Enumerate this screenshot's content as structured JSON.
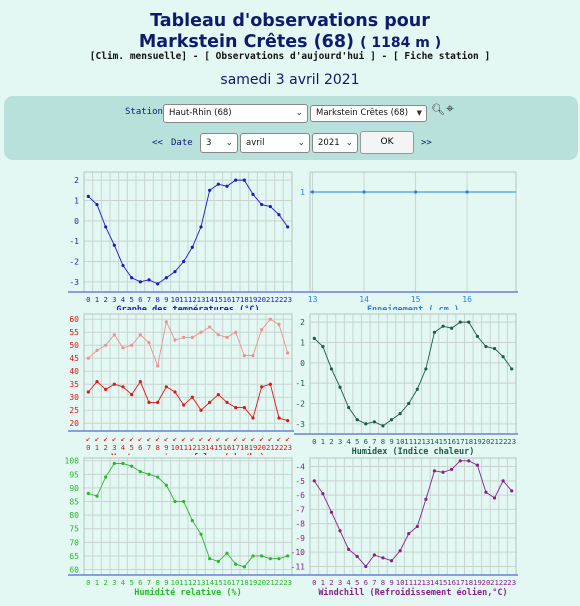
{
  "header": {
    "title_line1": "Tableau d'observations pour",
    "title_line2": "Markstein Crêtes (68)",
    "altitude": "( 1184 m )",
    "link_clim": "[Clim. mensuelle]",
    "sep1": " - ",
    "link_obs": "[ Observations d'aujourd'hui ]",
    "sep2": " - ",
    "link_fiche": "[ Fiche station ]",
    "date": "samedi 3 avril 2021"
  },
  "form": {
    "station_label": "Station :",
    "department": "Haut-Rhin (68)",
    "station": "Markstein Crêtes (68)",
    "prev": "<<",
    "date_label": "Date :",
    "day": "3",
    "month": "avril",
    "year": "2021",
    "ok": "OK",
    "next": ">>"
  },
  "chart_data": [
    {
      "type": "line",
      "xlabel": "Graphe des températures (°C)",
      "x": [
        0,
        1,
        2,
        3,
        4,
        5,
        6,
        7,
        8,
        9,
        10,
        11,
        12,
        13,
        14,
        15,
        16,
        17,
        18,
        19,
        20,
        21,
        22,
        23
      ],
      "yticks": [
        2,
        1,
        0,
        -1,
        -2,
        -3
      ],
      "series": [
        {
          "values": [
            1.2,
            0.8,
            -0.3,
            -1.2,
            -2.2,
            -2.8,
            -3.0,
            -2.9,
            -3.1,
            -2.8,
            -2.5,
            -2.0,
            -1.3,
            -0.3,
            1.5,
            1.8,
            1.7,
            2.0,
            2.0,
            1.3,
            0.8,
            0.7,
            0.3,
            -0.3
          ]
        }
      ]
    },
    {
      "type": "line",
      "xlabel": "Enneigement ( cm )",
      "x": [
        13,
        14,
        15,
        16
      ],
      "xticks": [
        13,
        14,
        15,
        16
      ],
      "yticks": [
        1
      ],
      "series": [
        {
          "values": [
            1,
            1,
            1,
            1
          ]
        }
      ]
    },
    {
      "type": "line",
      "xlabel": "Vent moyen/en rafales ( km/h )",
      "x": [
        0,
        1,
        2,
        3,
        4,
        5,
        6,
        7,
        8,
        9,
        10,
        11,
        12,
        13,
        14,
        15,
        16,
        17,
        18,
        19,
        20,
        21,
        22,
        23
      ],
      "yticks": [
        60,
        55,
        50,
        45,
        40,
        35,
        30,
        25,
        20
      ],
      "series": [
        {
          "values": [
            45,
            48,
            50,
            54,
            49,
            50,
            54,
            51,
            42,
            59,
            52,
            53,
            53,
            55,
            57,
            54,
            53,
            55,
            46,
            46,
            56,
            60,
            58,
            47
          ]
        },
        {
          "values": [
            32,
            36,
            33,
            35,
            34,
            31,
            36,
            28,
            28,
            34,
            32,
            27,
            30,
            25,
            28,
            31,
            28,
            26,
            26,
            22,
            34,
            35,
            22,
            21
          ]
        }
      ]
    },
    {
      "type": "line",
      "xlabel": "Humidex (Indice chaleur)",
      "x": [
        0,
        1,
        2,
        3,
        4,
        5,
        6,
        7,
        8,
        9,
        10,
        11,
        12,
        13,
        14,
        15,
        16,
        17,
        18,
        19,
        20,
        21,
        22,
        23
      ],
      "yticks": [
        2,
        1,
        0,
        -1,
        -2,
        -3
      ],
      "series": [
        {
          "values": [
            1.2,
            0.8,
            -0.3,
            -1.2,
            -2.2,
            -2.8,
            -3.0,
            -2.9,
            -3.1,
            -2.8,
            -2.5,
            -2.0,
            -1.3,
            -0.3,
            1.5,
            1.8,
            1.7,
            2.0,
            2.0,
            1.3,
            0.8,
            0.7,
            0.3,
            -0.3
          ]
        }
      ]
    },
    {
      "type": "line",
      "xlabel": "Humidité relative (%)",
      "x": [
        0,
        1,
        2,
        3,
        4,
        5,
        6,
        7,
        8,
        9,
        10,
        11,
        12,
        13,
        14,
        15,
        16,
        17,
        18,
        19,
        20,
        21,
        22,
        23
      ],
      "yticks": [
        100,
        95,
        90,
        85,
        80,
        75,
        70,
        65,
        60
      ],
      "series": [
        {
          "values": [
            88,
            87,
            94,
            99,
            99,
            98,
            96,
            95,
            94,
            91,
            85,
            85,
            78,
            73,
            64,
            63,
            66,
            62,
            61,
            65,
            65,
            64,
            64,
            65
          ]
        }
      ]
    },
    {
      "type": "line",
      "xlabel": "Windchill (Refroidissement éolien,°C)",
      "x": [
        0,
        1,
        2,
        3,
        4,
        5,
        6,
        7,
        8,
        9,
        10,
        11,
        12,
        13,
        14,
        15,
        16,
        17,
        18,
        19,
        20,
        21,
        22,
        23
      ],
      "yticks": [
        -4,
        -5,
        -6,
        -7,
        -8,
        -9,
        -10,
        -11
      ],
      "series": [
        {
          "values": [
            -5,
            -5.9,
            -7.2,
            -8.5,
            -9.8,
            -10.3,
            -11,
            -10.2,
            -10.4,
            -10.6,
            -9.9,
            -8.7,
            -8.2,
            -6.3,
            -4.3,
            -4.4,
            -4.2,
            -3.6,
            -3.6,
            -3.9,
            -5.8,
            -6.2,
            -5.0,
            -5.7
          ]
        }
      ]
    }
  ],
  "colors": {
    "temp": "#1a1acc",
    "snow": "#2a80e0",
    "gust": "#f09090",
    "wind": "#e01515",
    "humidex": "#1e5a4a",
    "humidity": "#28b828",
    "windchill": "#8a1f8a",
    "axis": "#6d7fd9"
  }
}
